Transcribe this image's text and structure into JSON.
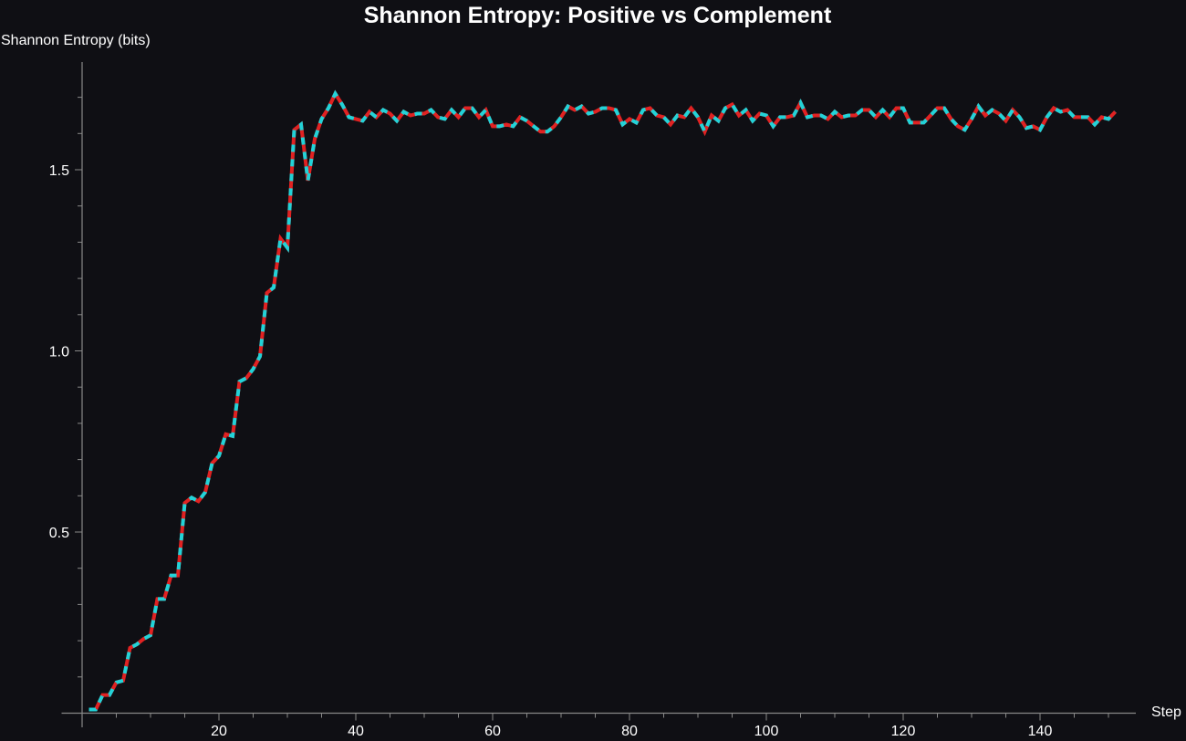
{
  "chart_data": {
    "type": "line",
    "title": "Shannon Entropy: Positive vs Complement",
    "xlabel": "Step",
    "ylabel": "Shannon Entropy (bits)",
    "xlim": [
      -3,
      154
    ],
    "ylim": [
      0,
      1.8
    ],
    "x_ticks": [
      20,
      40,
      60,
      80,
      100,
      120,
      140
    ],
    "y_ticks": [
      0.5,
      1.0,
      1.5
    ],
    "y_tick_labels": [
      "0.5",
      "1.0",
      "1.5"
    ],
    "x_start": 1,
    "grid": false,
    "legend": "none",
    "colors": {
      "background": "#0f0f14",
      "axis": "#888888",
      "series_solid": "#e02222",
      "series_dashed": "#22d3d8"
    },
    "series": [
      {
        "style": "solid",
        "color": "#e02222",
        "values": [
          0.01,
          0.01,
          0.05,
          0.05,
          0.085,
          0.09,
          0.18,
          0.19,
          0.205,
          0.215,
          0.315,
          0.315,
          0.38,
          0.38,
          0.58,
          0.595,
          0.585,
          0.61,
          0.69,
          0.71,
          0.77,
          0.765,
          0.915,
          0.925,
          0.95,
          0.985,
          1.16,
          1.175,
          1.31,
          1.285,
          1.61,
          1.625,
          1.47,
          1.585,
          1.64,
          1.67,
          1.71,
          1.68,
          1.645,
          1.64,
          1.635,
          1.66,
          1.645,
          1.665,
          1.655,
          1.635,
          1.66,
          1.65,
          1.655,
          1.655,
          1.665,
          1.645,
          1.64,
          1.665,
          1.645,
          1.67,
          1.67,
          1.645,
          1.665,
          1.62,
          1.62,
          1.625,
          1.62,
          1.645,
          1.635,
          1.62,
          1.605,
          1.605,
          1.62,
          1.645,
          1.675,
          1.665,
          1.675,
          1.655,
          1.66,
          1.67,
          1.67,
          1.665,
          1.625,
          1.64,
          1.63,
          1.665,
          1.67,
          1.65,
          1.645,
          1.625,
          1.65,
          1.645,
          1.67,
          1.645,
          1.605,
          1.65,
          1.635,
          1.67,
          1.68,
          1.65,
          1.665,
          1.635,
          1.655,
          1.65,
          1.62,
          1.645,
          1.645,
          1.65,
          1.685,
          1.645,
          1.65,
          1.65,
          1.64,
          1.66,
          1.645,
          1.65,
          1.65,
          1.665,
          1.665,
          1.645,
          1.665,
          1.645,
          1.67,
          1.67,
          1.63,
          1.63,
          1.63,
          1.65,
          1.67,
          1.67,
          1.64,
          1.62,
          1.61,
          1.64,
          1.675,
          1.65,
          1.665,
          1.655,
          1.635,
          1.665,
          1.645,
          1.615,
          1.62,
          1.61,
          1.645,
          1.67,
          1.66,
          1.665,
          1.645,
          1.645,
          1.645,
          1.625,
          1.645,
          1.64,
          1.66
        ]
      },
      {
        "style": "dashed",
        "color": "#22d3d8",
        "values": [
          0.01,
          0.01,
          0.05,
          0.05,
          0.085,
          0.09,
          0.18,
          0.19,
          0.205,
          0.215,
          0.315,
          0.315,
          0.38,
          0.38,
          0.58,
          0.595,
          0.585,
          0.61,
          0.69,
          0.71,
          0.77,
          0.765,
          0.915,
          0.925,
          0.95,
          0.985,
          1.16,
          1.175,
          1.31,
          1.285,
          1.61,
          1.625,
          1.47,
          1.585,
          1.64,
          1.67,
          1.71,
          1.68,
          1.645,
          1.64,
          1.635,
          1.66,
          1.645,
          1.665,
          1.655,
          1.635,
          1.66,
          1.65,
          1.655,
          1.655,
          1.665,
          1.645,
          1.64,
          1.665,
          1.645,
          1.67,
          1.67,
          1.645,
          1.665,
          1.62,
          1.62,
          1.625,
          1.62,
          1.645,
          1.635,
          1.62,
          1.605,
          1.605,
          1.62,
          1.645,
          1.675,
          1.665,
          1.675,
          1.655,
          1.66,
          1.67,
          1.67,
          1.665,
          1.625,
          1.64,
          1.63,
          1.665,
          1.67,
          1.65,
          1.645,
          1.625,
          1.65,
          1.645,
          1.67,
          1.645,
          1.605,
          1.65,
          1.635,
          1.67,
          1.68,
          1.65,
          1.665,
          1.635,
          1.655,
          1.65,
          1.62,
          1.645,
          1.645,
          1.65,
          1.685,
          1.645,
          1.65,
          1.65,
          1.64,
          1.66,
          1.645,
          1.65,
          1.65,
          1.665,
          1.665,
          1.645,
          1.665,
          1.645,
          1.67,
          1.67,
          1.63,
          1.63,
          1.63,
          1.65,
          1.67,
          1.67,
          1.64,
          1.62,
          1.61,
          1.64,
          1.675,
          1.65,
          1.665,
          1.655,
          1.635,
          1.665,
          1.645,
          1.615,
          1.62,
          1.61,
          1.645,
          1.67,
          1.66,
          1.665,
          1.645,
          1.645,
          1.645,
          1.625,
          1.645,
          1.64,
          1.66
        ]
      }
    ]
  }
}
